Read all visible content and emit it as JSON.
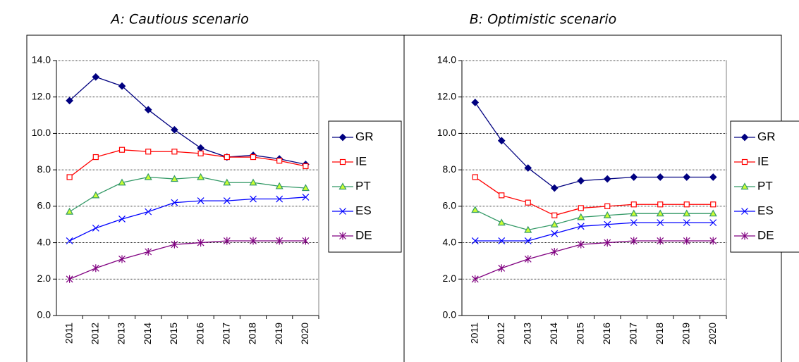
{
  "chart_data": [
    {
      "type": "line",
      "title": "A: Cautious scenario",
      "categories": [
        "2011",
        "2012",
        "2013",
        "2014",
        "2015",
        "2016",
        "2017",
        "2018",
        "2019",
        "2020"
      ],
      "ylim": [
        0,
        14
      ],
      "yticks": [
        {
          "value": 0,
          "label": "0.0"
        },
        {
          "value": 2,
          "label": "2.0"
        },
        {
          "value": 4,
          "label": "4.0"
        },
        {
          "value": 6,
          "label": "6.0"
        },
        {
          "value": 8,
          "label": "8.0"
        },
        {
          "value": 10,
          "label": "10.0"
        },
        {
          "value": 12,
          "label": "12.0"
        },
        {
          "value": 14,
          "label": "14.0"
        }
      ],
      "grid": true,
      "legend": "right",
      "series": [
        {
          "name": "GR",
          "color": "#000080",
          "marker": "diamond",
          "marker_fill": "#000080",
          "values": [
            11.8,
            13.1,
            12.6,
            11.3,
            10.2,
            9.2,
            8.7,
            8.8,
            8.6,
            8.3
          ]
        },
        {
          "name": "IE",
          "color": "#ff0000",
          "marker": "square",
          "marker_fill": "#ffffff",
          "values": [
            7.6,
            8.7,
            9.1,
            9.0,
            9.0,
            8.9,
            8.7,
            8.7,
            8.5,
            8.2
          ]
        },
        {
          "name": "PT",
          "color": "#339966",
          "marker": "triangle",
          "marker_fill": "#ccff33",
          "values": [
            5.7,
            6.6,
            7.3,
            7.6,
            7.5,
            7.6,
            7.3,
            7.3,
            7.1,
            7.0
          ]
        },
        {
          "name": "ES",
          "color": "#0000ff",
          "marker": "x",
          "marker_fill": "none",
          "values": [
            4.1,
            4.8,
            5.3,
            5.7,
            6.2,
            6.3,
            6.3,
            6.4,
            6.4,
            6.5
          ]
        },
        {
          "name": "DE",
          "color": "#800080",
          "marker": "star",
          "marker_fill": "none",
          "values": [
            2.0,
            2.6,
            3.1,
            3.5,
            3.9,
            4.0,
            4.1,
            4.1,
            4.1,
            4.1
          ]
        }
      ]
    },
    {
      "type": "line",
      "title": "B: Optimistic scenario",
      "categories": [
        "2011",
        "2012",
        "2013",
        "2014",
        "2015",
        "2016",
        "2017",
        "2018",
        "2019",
        "2020"
      ],
      "ylim": [
        0,
        14
      ],
      "yticks": [
        {
          "value": 0,
          "label": "0.0"
        },
        {
          "value": 2,
          "label": "2.0"
        },
        {
          "value": 4,
          "label": "4.0"
        },
        {
          "value": 6,
          "label": "6.0"
        },
        {
          "value": 8,
          "label": "8.0"
        },
        {
          "value": 10,
          "label": "10.0"
        },
        {
          "value": 12,
          "label": "12.0"
        },
        {
          "value": 14,
          "label": "14.0"
        }
      ],
      "grid": true,
      "legend": "right",
      "series": [
        {
          "name": "GR",
          "color": "#000080",
          "marker": "diamond",
          "marker_fill": "#000080",
          "values": [
            11.7,
            9.6,
            8.1,
            7.0,
            7.4,
            7.5,
            7.6,
            7.6,
            7.6,
            7.6
          ]
        },
        {
          "name": "IE",
          "color": "#ff0000",
          "marker": "square",
          "marker_fill": "#ffffff",
          "values": [
            7.6,
            6.6,
            6.2,
            5.5,
            5.9,
            6.0,
            6.1,
            6.1,
            6.1,
            6.1
          ]
        },
        {
          "name": "PT",
          "color": "#339966",
          "marker": "triangle",
          "marker_fill": "#ccff33",
          "values": [
            5.8,
            5.1,
            4.7,
            5.0,
            5.4,
            5.5,
            5.6,
            5.6,
            5.6,
            5.6
          ]
        },
        {
          "name": "ES",
          "color": "#0000ff",
          "marker": "x",
          "marker_fill": "none",
          "values": [
            4.1,
            4.1,
            4.1,
            4.5,
            4.9,
            5.0,
            5.1,
            5.1,
            5.1,
            5.1
          ]
        },
        {
          "name": "DE",
          "color": "#800080",
          "marker": "star",
          "marker_fill": "none",
          "values": [
            2.0,
            2.6,
            3.1,
            3.5,
            3.9,
            4.0,
            4.1,
            4.1,
            4.1,
            4.1
          ]
        }
      ]
    }
  ]
}
